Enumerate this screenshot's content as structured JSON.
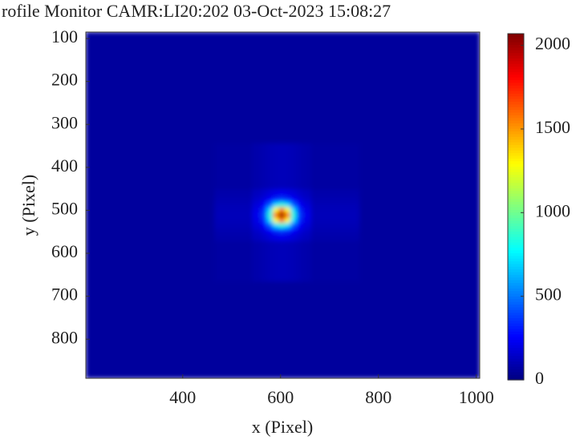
{
  "chart_data": {
    "type": "heatmap",
    "title": "rofile Monitor CAMR:LI20:202 03-Oct-2023 15:08:27",
    "x_label": "x  (Pixel)",
    "y_label": "y  (Pixel)",
    "x": [
      400,
      531,
      555,
      567,
      579,
      591,
      603,
      615,
      627,
      639,
      651,
      675,
      850
    ],
    "y": [
      250,
      440,
      464,
      476,
      488,
      500,
      512,
      524,
      536,
      548,
      560,
      584,
      750
    ],
    "z": [
      [
        60,
        60,
        60,
        60,
        60,
        60,
        60,
        60,
        60,
        60,
        60,
        60,
        60
      ],
      [
        60,
        71,
        88,
        98,
        108,
        115,
        117,
        115,
        108,
        98,
        88,
        71,
        60
      ],
      [
        60,
        88,
        129,
        156,
        184,
        209,
        220,
        209,
        184,
        156,
        129,
        88,
        60
      ],
      [
        60,
        98,
        156,
        200,
        266,
        347,
        388,
        347,
        266,
        200,
        156,
        98,
        60
      ],
      [
        60,
        108,
        184,
        266,
        441,
        709,
        854,
        709,
        441,
        266,
        184,
        108,
        60
      ],
      [
        60,
        115,
        209,
        347,
        709,
        1294,
        1621,
        1294,
        709,
        347,
        209,
        115,
        60
      ],
      [
        60,
        117,
        220,
        388,
        854,
        1621,
        2050,
        1621,
        854,
        388,
        220,
        117,
        60
      ],
      [
        60,
        115,
        209,
        347,
        709,
        1294,
        1621,
        1294,
        709,
        347,
        209,
        115,
        60
      ],
      [
        60,
        108,
        184,
        266,
        441,
        709,
        854,
        709,
        441,
        266,
        184,
        108,
        60
      ],
      [
        60,
        98,
        156,
        200,
        266,
        347,
        388,
        347,
        266,
        200,
        156,
        98,
        60
      ],
      [
        60,
        88,
        129,
        156,
        184,
        209,
        220,
        209,
        184,
        156,
        129,
        88,
        60
      ],
      [
        60,
        71,
        88,
        98,
        108,
        115,
        117,
        115,
        108,
        98,
        88,
        71,
        60
      ],
      [
        60,
        60,
        60,
        60,
        60,
        60,
        60,
        60,
        60,
        60,
        60,
        60,
        60
      ]
    ],
    "xlim": [
      202,
      1007
    ],
    "xticks": [
      400,
      600,
      800,
      1000
    ],
    "ylim": [
      85,
      891
    ],
    "yticks": [
      100,
      200,
      300,
      400,
      500,
      600,
      700,
      800
    ],
    "y_reversed": true,
    "colormap": "jet",
    "clim": [
      0,
      2070
    ],
    "cticks": [
      0,
      500,
      1000,
      1500,
      2000
    ]
  }
}
